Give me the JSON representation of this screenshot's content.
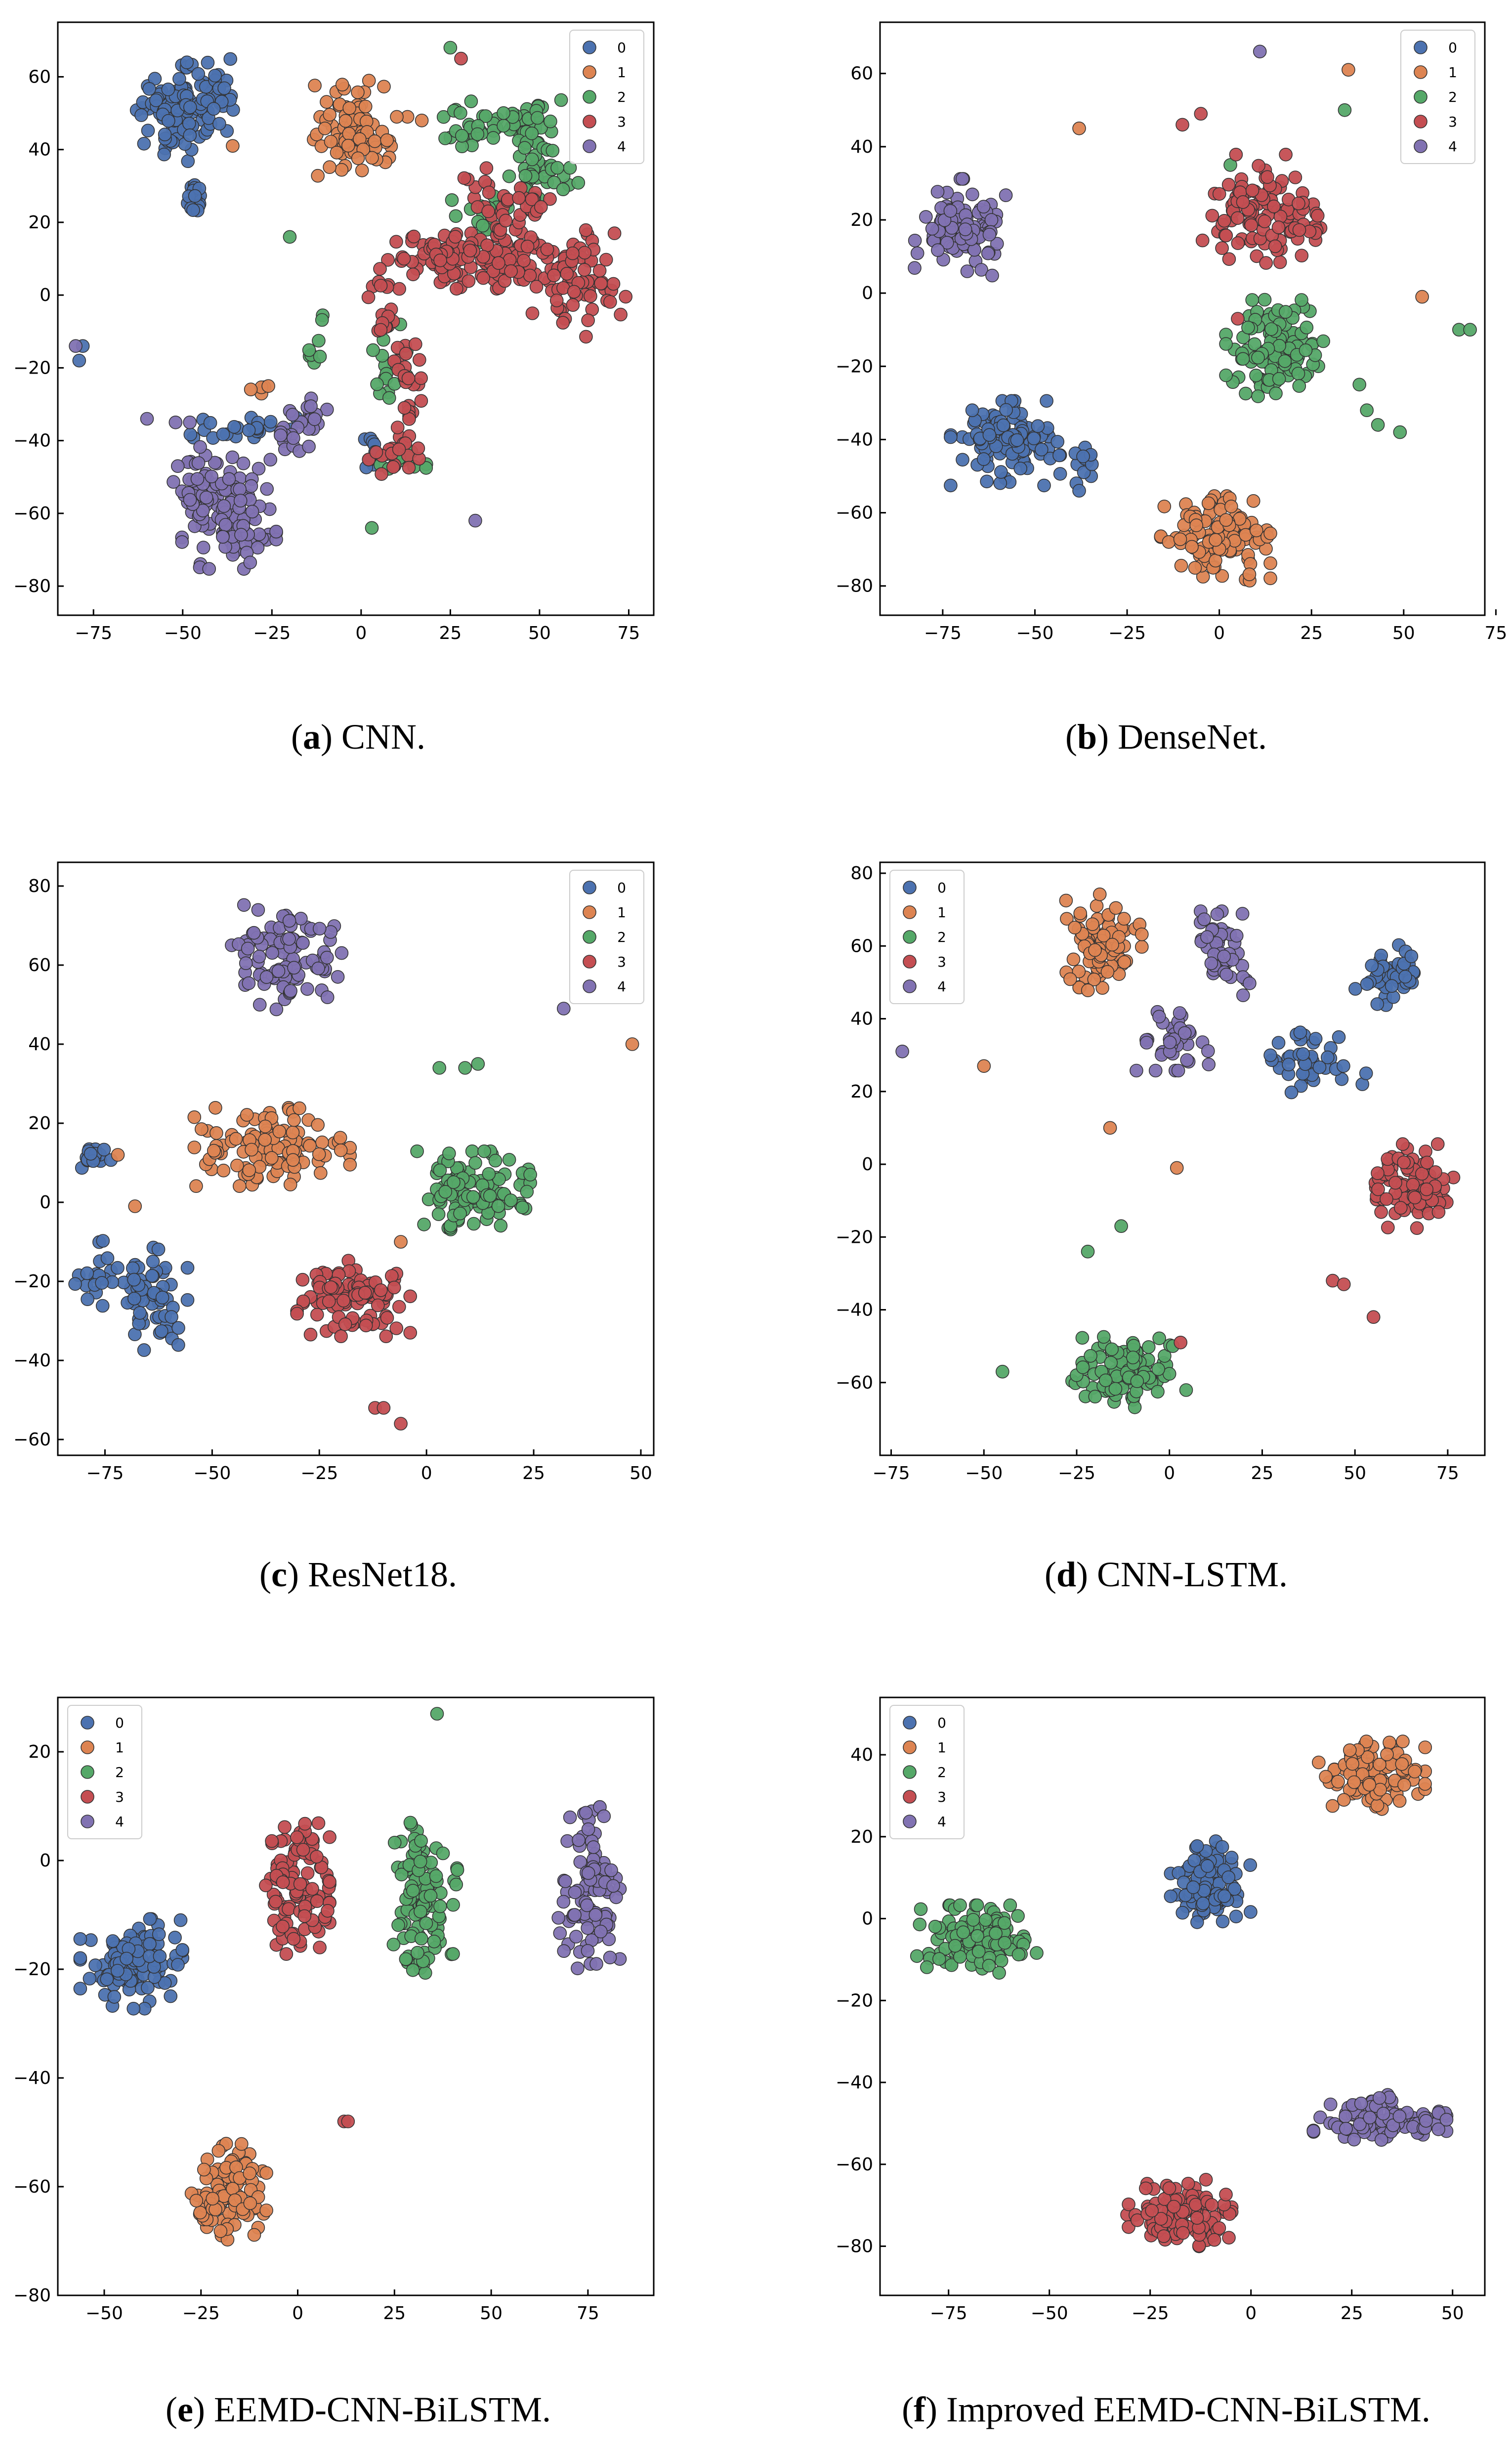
{
  "chart_data": [
    {
      "id": "a",
      "type": "scatter",
      "caption_letter": "a",
      "caption_text": "CNN.",
      "xlim": [
        -85,
        82
      ],
      "ylim": [
        -88,
        75
      ],
      "xticks": [
        -75,
        -50,
        -25,
        0,
        25,
        50,
        75
      ],
      "yticks": [
        -80,
        -60,
        -40,
        -20,
        0,
        20,
        40,
        60
      ],
      "legend_position": "top-right",
      "series": [
        {
          "name": "0",
          "color": "#4c72b0",
          "clusters": [
            [
              -53,
              50,
              6,
              8,
              90
            ],
            [
              -43,
              55,
              5,
              6,
              40
            ],
            [
              -47,
              27,
              2,
              3,
              18
            ],
            [
              -33,
              -37,
              9,
              2,
              26
            ],
            [
              3,
              -43,
              2,
              4,
              8
            ]
          ],
          "points": [
            [
              -78,
              -14
            ],
            [
              -79,
              -18
            ]
          ]
        },
        {
          "name": "1",
          "color": "#dd8452",
          "clusters": [
            [
              -3,
              46,
              7,
              8,
              70
            ],
            [
              3,
              40,
              4,
              4,
              16
            ],
            [
              -28,
              -26,
              2,
              1,
              4
            ]
          ],
          "points": [
            [
              13,
              49
            ],
            [
              17,
              48
            ],
            [
              10,
              49
            ],
            [
              -36,
              41
            ],
            [
              -26,
              -25
            ]
          ]
        },
        {
          "name": "2",
          "color": "#55a868",
          "clusters": [
            [
              47,
              47,
              6,
              4,
              40
            ],
            [
              50,
              35,
              7,
              6,
              40
            ],
            [
              30,
              45,
              6,
              5,
              25
            ],
            [
              33,
              22,
              6,
              5,
              20
            ],
            [
              -13,
              -12,
              2,
              4,
              8
            ],
            [
              8,
              -20,
              4,
              8,
              18
            ],
            [
              12,
              -45,
              5,
              4,
              10
            ]
          ],
          "points": [
            [
              25,
              68
            ],
            [
              -20,
              16
            ],
            [
              3,
              -64
            ],
            [
              55,
              35
            ]
          ]
        },
        {
          "name": "3",
          "color": "#c44e52",
          "clusters": [
            [
              40,
              10,
              15,
              5,
              100
            ],
            [
              60,
              3,
              9,
              9,
              60
            ],
            [
              22,
              12,
              10,
              5,
              40
            ],
            [
              40,
              25,
              10,
              6,
              40
            ],
            [
              7,
              -5,
              3,
              8,
              20
            ],
            [
              13,
              -30,
              3,
              10,
              26
            ],
            [
              8,
              -45,
              5,
              4,
              16
            ]
          ],
          "points": [
            [
              28,
              65
            ],
            [
              12,
              10
            ],
            [
              48,
              -5
            ]
          ]
        },
        {
          "name": "4",
          "color": "#8172b2",
          "clusters": [
            [
              -37,
              -60,
              8,
              10,
              110
            ],
            [
              -46,
              -50,
              4,
              5,
              20
            ],
            [
              -14,
              -35,
              5,
              4,
              18
            ],
            [
              -20,
              -40,
              4,
              2,
              10
            ]
          ],
          "points": [
            [
              -80,
              -14
            ],
            [
              -60,
              -34
            ],
            [
              -52,
              -35
            ],
            [
              32,
              -62
            ],
            [
              -48,
              -35
            ]
          ]
        }
      ]
    },
    {
      "id": "b",
      "type": "scatter",
      "caption_letter": "b",
      "caption_text": "DenseNet.",
      "xlim": [
        -92,
        72
      ],
      "ylim": [
        -88,
        74
      ],
      "xticks": [
        -75,
        -50,
        -25,
        0,
        25,
        50,
        75
      ],
      "yticks": [
        -80,
        -60,
        -40,
        -20,
        0,
        20,
        40,
        60
      ],
      "legend_position": "top-right",
      "series": [
        {
          "name": "0",
          "color": "#4c72b0",
          "clusters": [
            [
              -58,
              -41,
              9,
              7,
              110
            ],
            [
              -37,
              -47,
              2,
              3,
              12
            ]
          ],
          "points": [
            [
              -38,
              -54
            ]
          ]
        },
        {
          "name": "1",
          "color": "#dd8452",
          "clusters": [
            [
              -1,
              -67,
              9,
              7,
              110
            ]
          ],
          "points": [
            [
              -38,
              45
            ],
            [
              35,
              61
            ],
            [
              55,
              -1
            ]
          ]
        },
        {
          "name": "2",
          "color": "#55a868",
          "clusters": [
            [
              15,
              -15,
              8,
              8,
              110
            ]
          ],
          "points": [
            [
              34,
              50
            ],
            [
              38,
              -25
            ],
            [
              40,
              -32
            ],
            [
              43,
              -36
            ],
            [
              49,
              -38
            ],
            [
              65,
              -10
            ],
            [
              68,
              -10
            ],
            [
              3,
              35
            ]
          ]
        },
        {
          "name": "3",
          "color": "#c44e52",
          "clusters": [
            [
              10,
              23,
              9,
              9,
              90
            ],
            [
              25,
              18,
              4,
              5,
              20
            ]
          ],
          "points": [
            [
              -10,
              46
            ],
            [
              -5,
              49
            ],
            [
              5,
              -7
            ]
          ]
        },
        {
          "name": "4",
          "color": "#8172b2",
          "clusters": [
            [
              -70,
              18,
              8,
              8,
              100
            ]
          ],
          "points": [
            [
              11,
              66
            ]
          ]
        }
      ]
    },
    {
      "id": "c",
      "type": "scatter",
      "caption_letter": "c",
      "caption_text": "ResNet18.",
      "xlim": [
        -86,
        53
      ],
      "ylim": [
        -64,
        86
      ],
      "xticks": [
        -75,
        -50,
        -25,
        0,
        25,
        50
      ],
      "yticks": [
        -60,
        -40,
        -20,
        0,
        20,
        40,
        60,
        80
      ],
      "legend_position": "top-right",
      "series": [
        {
          "name": "0",
          "color": "#4c72b0",
          "clusters": [
            [
              -77,
              12,
              3,
              2,
              16
            ],
            [
              -64,
              -24,
              5,
              9,
              60
            ],
            [
              -77,
              -18,
              3,
              5,
              20
            ]
          ],
          "points": []
        },
        {
          "name": "1",
          "color": "#dd8452",
          "clusters": [
            [
              -36,
              14,
              11,
              6,
              110
            ]
          ],
          "points": [
            [
              -72,
              12
            ],
            [
              -68,
              -1
            ],
            [
              48,
              40
            ],
            [
              -6,
              -10
            ]
          ]
        },
        {
          "name": "2",
          "color": "#55a868",
          "clusters": [
            [
              11,
              3,
              8,
              6,
              110
            ]
          ],
          "points": [
            [
              3,
              34
            ],
            [
              9,
              34
            ],
            [
              12,
              35
            ]
          ]
        },
        {
          "name": "3",
          "color": "#c44e52",
          "clusters": [
            [
              -17,
              -24,
              8,
              6,
              100
            ]
          ],
          "points": [
            [
              -12,
              -52
            ],
            [
              -10,
              -52
            ],
            [
              -6,
              -56
            ]
          ]
        },
        {
          "name": "4",
          "color": "#8172b2",
          "clusters": [
            [
              -33,
              62,
              8,
              8,
              100
            ]
          ],
          "points": [
            [
              32,
              49
            ]
          ]
        }
      ]
    },
    {
      "id": "d",
      "type": "scatter",
      "caption_letter": "d",
      "caption_text": "CNN-LSTM.",
      "xlim": [
        -78,
        85
      ],
      "ylim": [
        -80,
        83
      ],
      "xticks": [
        -75,
        -50,
        -25,
        0,
        25,
        50,
        75
      ],
      "yticks": [
        -60,
        -40,
        -20,
        0,
        20,
        40,
        60,
        80
      ],
      "legend_position": "top-left",
      "series": [
        {
          "name": "0",
          "color": "#4c72b0",
          "clusters": [
            [
              60,
              52,
              6,
              5,
              50
            ],
            [
              37,
              28,
              6,
              5,
              40
            ]
          ],
          "points": [
            [
              52,
              22
            ],
            [
              53,
              25
            ]
          ]
        },
        {
          "name": "1",
          "color": "#dd8452",
          "clusters": [
            [
              -19,
              61,
              7,
              8,
              90
            ]
          ],
          "points": [
            [
              -50,
              27
            ],
            [
              2,
              -1
            ],
            [
              -16,
              10
            ]
          ]
        },
        {
          "name": "2",
          "color": "#55a868",
          "clusters": [
            [
              -12,
              -57,
              10,
              6,
              110
            ]
          ],
          "points": [
            [
              -45,
              -57
            ],
            [
              -22,
              -24
            ],
            [
              -13,
              -17
            ]
          ]
        },
        {
          "name": "3",
          "color": "#c44e52",
          "clusters": [
            [
              65,
              -6,
              7,
              7,
              100
            ]
          ],
          "points": [
            [
              44,
              -32
            ],
            [
              47,
              -33
            ],
            [
              55,
              -42
            ],
            [
              3,
              -49
            ]
          ]
        },
        {
          "name": "4",
          "color": "#8172b2",
          "clusters": [
            [
              15,
              58,
              4,
              7,
              45
            ],
            [
              1,
              34,
              6,
              5,
              45
            ]
          ],
          "points": [
            [
              -72,
              31
            ]
          ]
        }
      ]
    },
    {
      "id": "e",
      "type": "scatter",
      "caption_letter": "e",
      "caption_text": "EEMD-CNN-BiLSTM.",
      "xlim": [
        -62,
        92
      ],
      "ylim": [
        -80,
        30
      ],
      "xticks": [
        -50,
        -25,
        0,
        25,
        50,
        75
      ],
      "yticks": [
        -80,
        -60,
        -40,
        -20,
        0,
        20
      ],
      "legend_position": "top-left",
      "series": [
        {
          "name": "0",
          "color": "#4c72b0",
          "clusters": [
            [
              -43,
              -19,
              8,
              5,
              110
            ]
          ],
          "points": []
        },
        {
          "name": "1",
          "color": "#dd8452",
          "clusters": [
            [
              -18,
              -62,
              6,
              6,
              100
            ]
          ],
          "points": []
        },
        {
          "name": "2",
          "color": "#55a868",
          "clusters": [
            [
              33,
              -7,
              5,
              9,
              110
            ]
          ],
          "points": [
            [
              36,
              27
            ]
          ]
        },
        {
          "name": "3",
          "color": "#c44e52",
          "clusters": [
            [
              0,
              -4,
              5,
              8,
              110
            ]
          ],
          "points": [
            [
              12,
              -48
            ],
            [
              13,
              -48
            ]
          ]
        },
        {
          "name": "4",
          "color": "#8172b2",
          "clusters": [
            [
              75,
              -5,
              5,
              9,
              100
            ]
          ],
          "points": []
        }
      ]
    },
    {
      "id": "f",
      "type": "scatter",
      "caption_letter": "f",
      "caption_text": "Improved EEMD-CNN-BiLSTM.",
      "xlim": [
        -92,
        58
      ],
      "ylim": [
        -92,
        54
      ],
      "xticks": [
        -75,
        -50,
        -25,
        0,
        25,
        50
      ],
      "yticks": [
        -80,
        -60,
        -40,
        -20,
        0,
        20,
        40
      ],
      "legend_position": "top-left",
      "series": [
        {
          "name": "0",
          "color": "#4c72b0",
          "clusters": [
            [
              -10,
              9,
              6,
              6,
              110
            ]
          ],
          "points": []
        },
        {
          "name": "1",
          "color": "#dd8452",
          "clusters": [
            [
              30,
              35,
              8,
              5,
              110
            ]
          ],
          "points": []
        },
        {
          "name": "2",
          "color": "#55a868",
          "clusters": [
            [
              -68,
              -5,
              9,
              5,
              110
            ]
          ],
          "points": []
        },
        {
          "name": "3",
          "color": "#c44e52",
          "clusters": [
            [
              -18,
              -72,
              8,
              5,
              110
            ]
          ],
          "points": []
        },
        {
          "name": "4",
          "color": "#8172b2",
          "clusters": [
            [
              32,
              -49,
              10,
              4,
              110
            ]
          ],
          "points": []
        }
      ]
    }
  ]
}
